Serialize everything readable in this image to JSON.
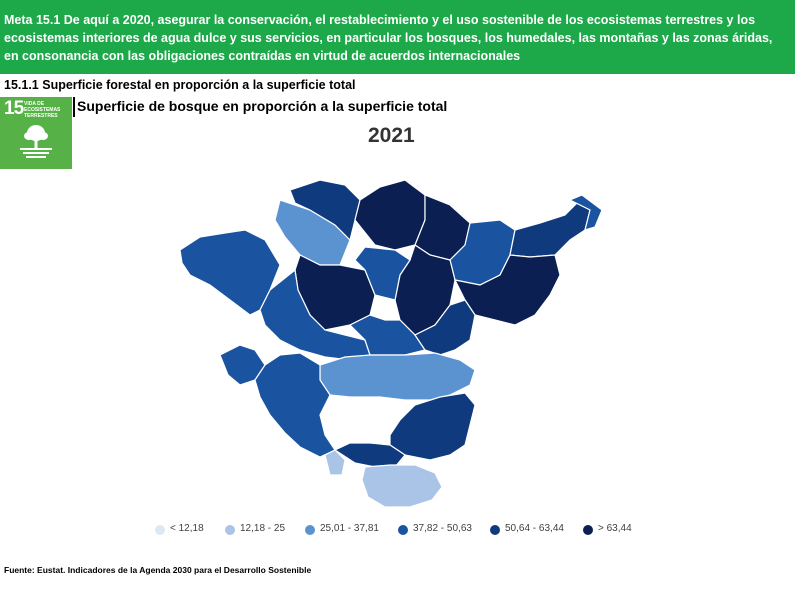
{
  "banner": {
    "text": "Meta 15.1 De aquí a 2020, asegurar la conservación, el restablecimiento y el uso sostenible de los ecosistemas terrestres y los ecosistemas interiores de agua dulce y sus servicios, en particular los bosques, los humedales, las montañas y las zonas áridas, en consonancia con las obligaciones contraídas en virtud de acuerdos internacionales"
  },
  "indicator": {
    "label": "15.1.1 Superficie forestal en proporción a la superficie total"
  },
  "sdg": {
    "number": "15",
    "title": "VIDA DE ECOSISTEMAS TERRESTRES",
    "color": "#56b146",
    "icon": "tree-icon"
  },
  "map": {
    "title": "Superficie de bosque en proporción a la superficie total",
    "year": "2021",
    "legend": [
      {
        "label": "< 12,18",
        "color": "#dce8f4"
      },
      {
        "label": "12,18 - 25",
        "color": "#a9c4e6"
      },
      {
        "label": "25,01 - 37,81",
        "color": "#5b93d0"
      },
      {
        "label": "37,82 - 50,63",
        "color": "#1a53a0"
      },
      {
        "label": "50,64 - 63,44",
        "color": "#0f3a7d"
      },
      {
        "label": "> 63,44",
        "color": "#0b1f52"
      }
    ]
  },
  "source": {
    "text": "Fuente: Eustat. Indicadores de la Agenda 2030 para el Desarrollo Sostenible"
  }
}
